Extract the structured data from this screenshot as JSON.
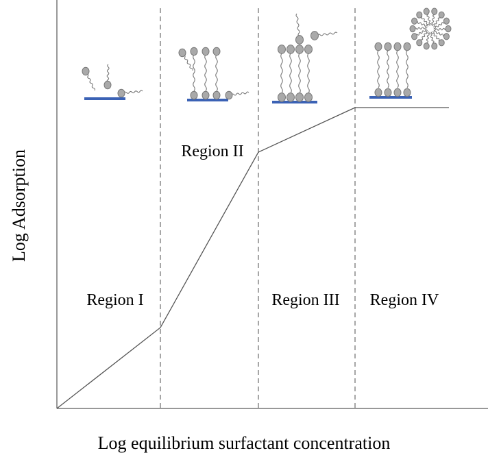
{
  "axes": {
    "x_label": "Log equilibrium surfactant concentration",
    "y_label": "Log Adsorption"
  },
  "regions": [
    "Region I",
    "Region II",
    "Region III",
    "Region IV"
  ]
}
